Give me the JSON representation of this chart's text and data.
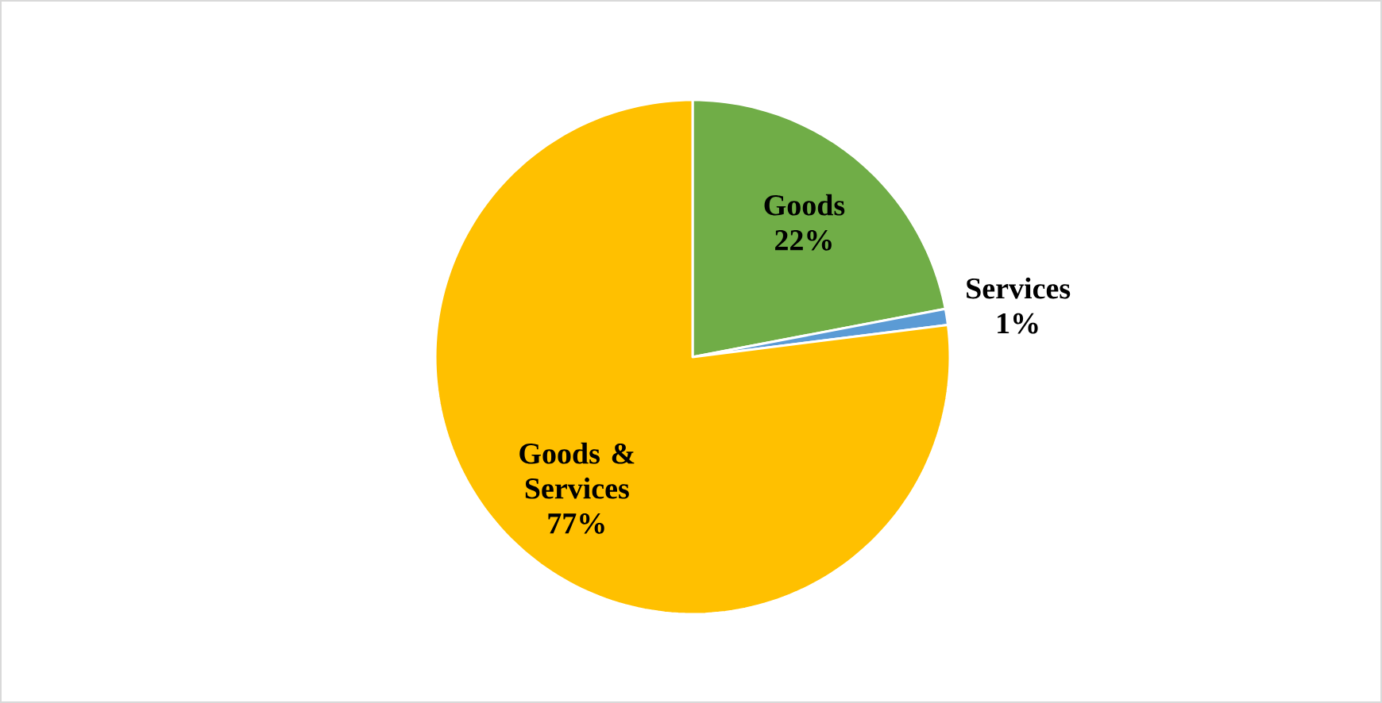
{
  "chart_data": {
    "type": "pie",
    "categories": [
      "Goods",
      "Services",
      "Goods & Services"
    ],
    "values": [
      22,
      1,
      77
    ],
    "colors": [
      "#70ad47",
      "#5b9bd5",
      "#ffc000"
    ],
    "value_labels": [
      "22%",
      "1%",
      "77%"
    ],
    "data_labels": true
  }
}
